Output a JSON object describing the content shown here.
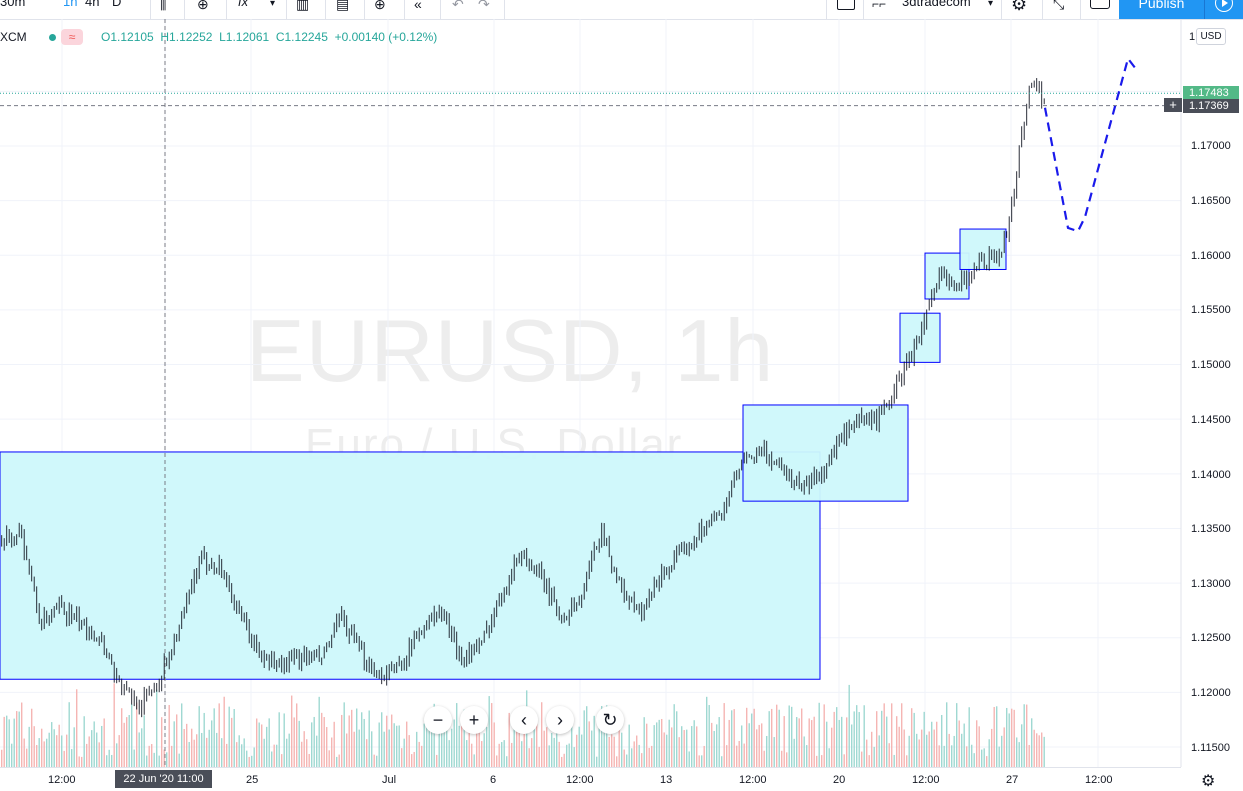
{
  "toolbar": {
    "intervals": [
      "30m",
      "1h",
      "4h",
      "D"
    ],
    "fx_label": "fx",
    "account": "3dtradecom",
    "publish_label": "Publish"
  },
  "legend": {
    "symbol": "XCM",
    "open": "O1.12105",
    "high": "H1.12252",
    "low": "L1.12061",
    "close": "C1.12245",
    "change": "+0.00140 (+0.12%)",
    "compare_icon": "≈"
  },
  "watermark": {
    "symbol": "EURUSD, 1h",
    "description": "Euro / U.S. Dollar"
  },
  "price_axis": {
    "currency": "USD",
    "top_tick": "1.",
    "ticks": [
      "1.17000",
      "1.16500",
      "1.16000",
      "1.15500",
      "1.15000",
      "1.14500",
      "1.14000",
      "1.13500",
      "1.13000",
      "1.12500",
      "1.12000",
      "1.11500"
    ],
    "last_price": "1.17483",
    "crosshair_price": "1.17369",
    "crosshair_plus": "+"
  },
  "time_axis": {
    "labels": [
      "12:00",
      "25",
      "Jul",
      "6",
      "12:00",
      "13",
      "12:00",
      "20",
      "12:00",
      "27",
      "12:00"
    ],
    "crosshair_date": "22 Jun '20  11:00"
  },
  "zoom_controls": {
    "zoom_out": "−",
    "zoom_in": "+",
    "scroll_left": "‹",
    "scroll_right": "›",
    "reset": "↻"
  },
  "colors": {
    "up": "#26a69a",
    "down": "#ef5350",
    "zone_fill": "#cdf8fb",
    "zone_border": "#0000ff",
    "accent": "#2196f3"
  },
  "chart_data": {
    "type": "candlestick",
    "symbol": "EURUSD",
    "interval": "1h",
    "price_range": [
      1.1125,
      1.1785
    ],
    "price_path": [
      [
        0,
        1.1335
      ],
      [
        20,
        1.1348
      ],
      [
        40,
        1.1262
      ],
      [
        60,
        1.1278
      ],
      [
        80,
        1.1262
      ],
      [
        100,
        1.125
      ],
      [
        120,
        1.1205
      ],
      [
        140,
        1.1188
      ],
      [
        160,
        1.1215
      ],
      [
        180,
        1.1262
      ],
      [
        200,
        1.1322
      ],
      [
        220,
        1.1315
      ],
      [
        240,
        1.1268
      ],
      [
        260,
        1.1232
      ],
      [
        280,
        1.1225
      ],
      [
        300,
        1.1232
      ],
      [
        320,
        1.123
      ],
      [
        340,
        1.1268
      ],
      [
        360,
        1.1235
      ],
      [
        380,
        1.1215
      ],
      [
        400,
        1.1225
      ],
      [
        420,
        1.1258
      ],
      [
        440,
        1.1275
      ],
      [
        460,
        1.1232
      ],
      [
        480,
        1.1242
      ],
      [
        500,
        1.129
      ],
      [
        520,
        1.1328
      ],
      [
        540,
        1.1305
      ],
      [
        560,
        1.1268
      ],
      [
        580,
        1.1285
      ],
      [
        600,
        1.135
      ],
      [
        620,
        1.1295
      ],
      [
        640,
        1.127
      ],
      [
        660,
        1.1308
      ],
      [
        680,
        1.1325
      ],
      [
        700,
        1.135
      ],
      [
        720,
        1.1362
      ],
      [
        740,
        1.1408
      ],
      [
        760,
        1.142
      ],
      [
        780,
        1.1408
      ],
      [
        800,
        1.1388
      ],
      [
        820,
        1.14
      ],
      [
        840,
        1.1432
      ],
      [
        860,
        1.1448
      ],
      [
        880,
        1.1452
      ],
      [
        900,
        1.1488
      ],
      [
        920,
        1.153
      ],
      [
        940,
        1.1582
      ],
      [
        960,
        1.1575
      ],
      [
        980,
        1.1595
      ],
      [
        1000,
        1.16
      ],
      [
        1010,
        1.164
      ],
      [
        1020,
        1.1705
      ],
      [
        1030,
        1.176
      ],
      [
        1040,
        1.175
      ],
      [
        1045,
        1.174
      ]
    ],
    "zones": [
      {
        "from": 0,
        "to": 820,
        "low": 1.1212,
        "high": 1.142
      },
      {
        "from": 743,
        "to": 908,
        "low": 1.1375,
        "high": 1.1463
      },
      {
        "from": 900,
        "to": 940,
        "low": 1.1502,
        "high": 1.1547
      },
      {
        "from": 925,
        "to": 969,
        "low": 1.156,
        "high": 1.1602
      },
      {
        "from": 960,
        "to": 1006,
        "low": 1.1587,
        "high": 1.1624
      }
    ],
    "projection": [
      [
        1045,
        1.1735
      ],
      [
        1068,
        1.1625
      ],
      [
        1078,
        1.1622
      ],
      [
        1085,
        1.1635
      ],
      [
        1128,
        1.178
      ],
      [
        1138,
        1.1768
      ]
    ],
    "crosshair": {
      "x": 165,
      "price": 1.17369
    }
  }
}
